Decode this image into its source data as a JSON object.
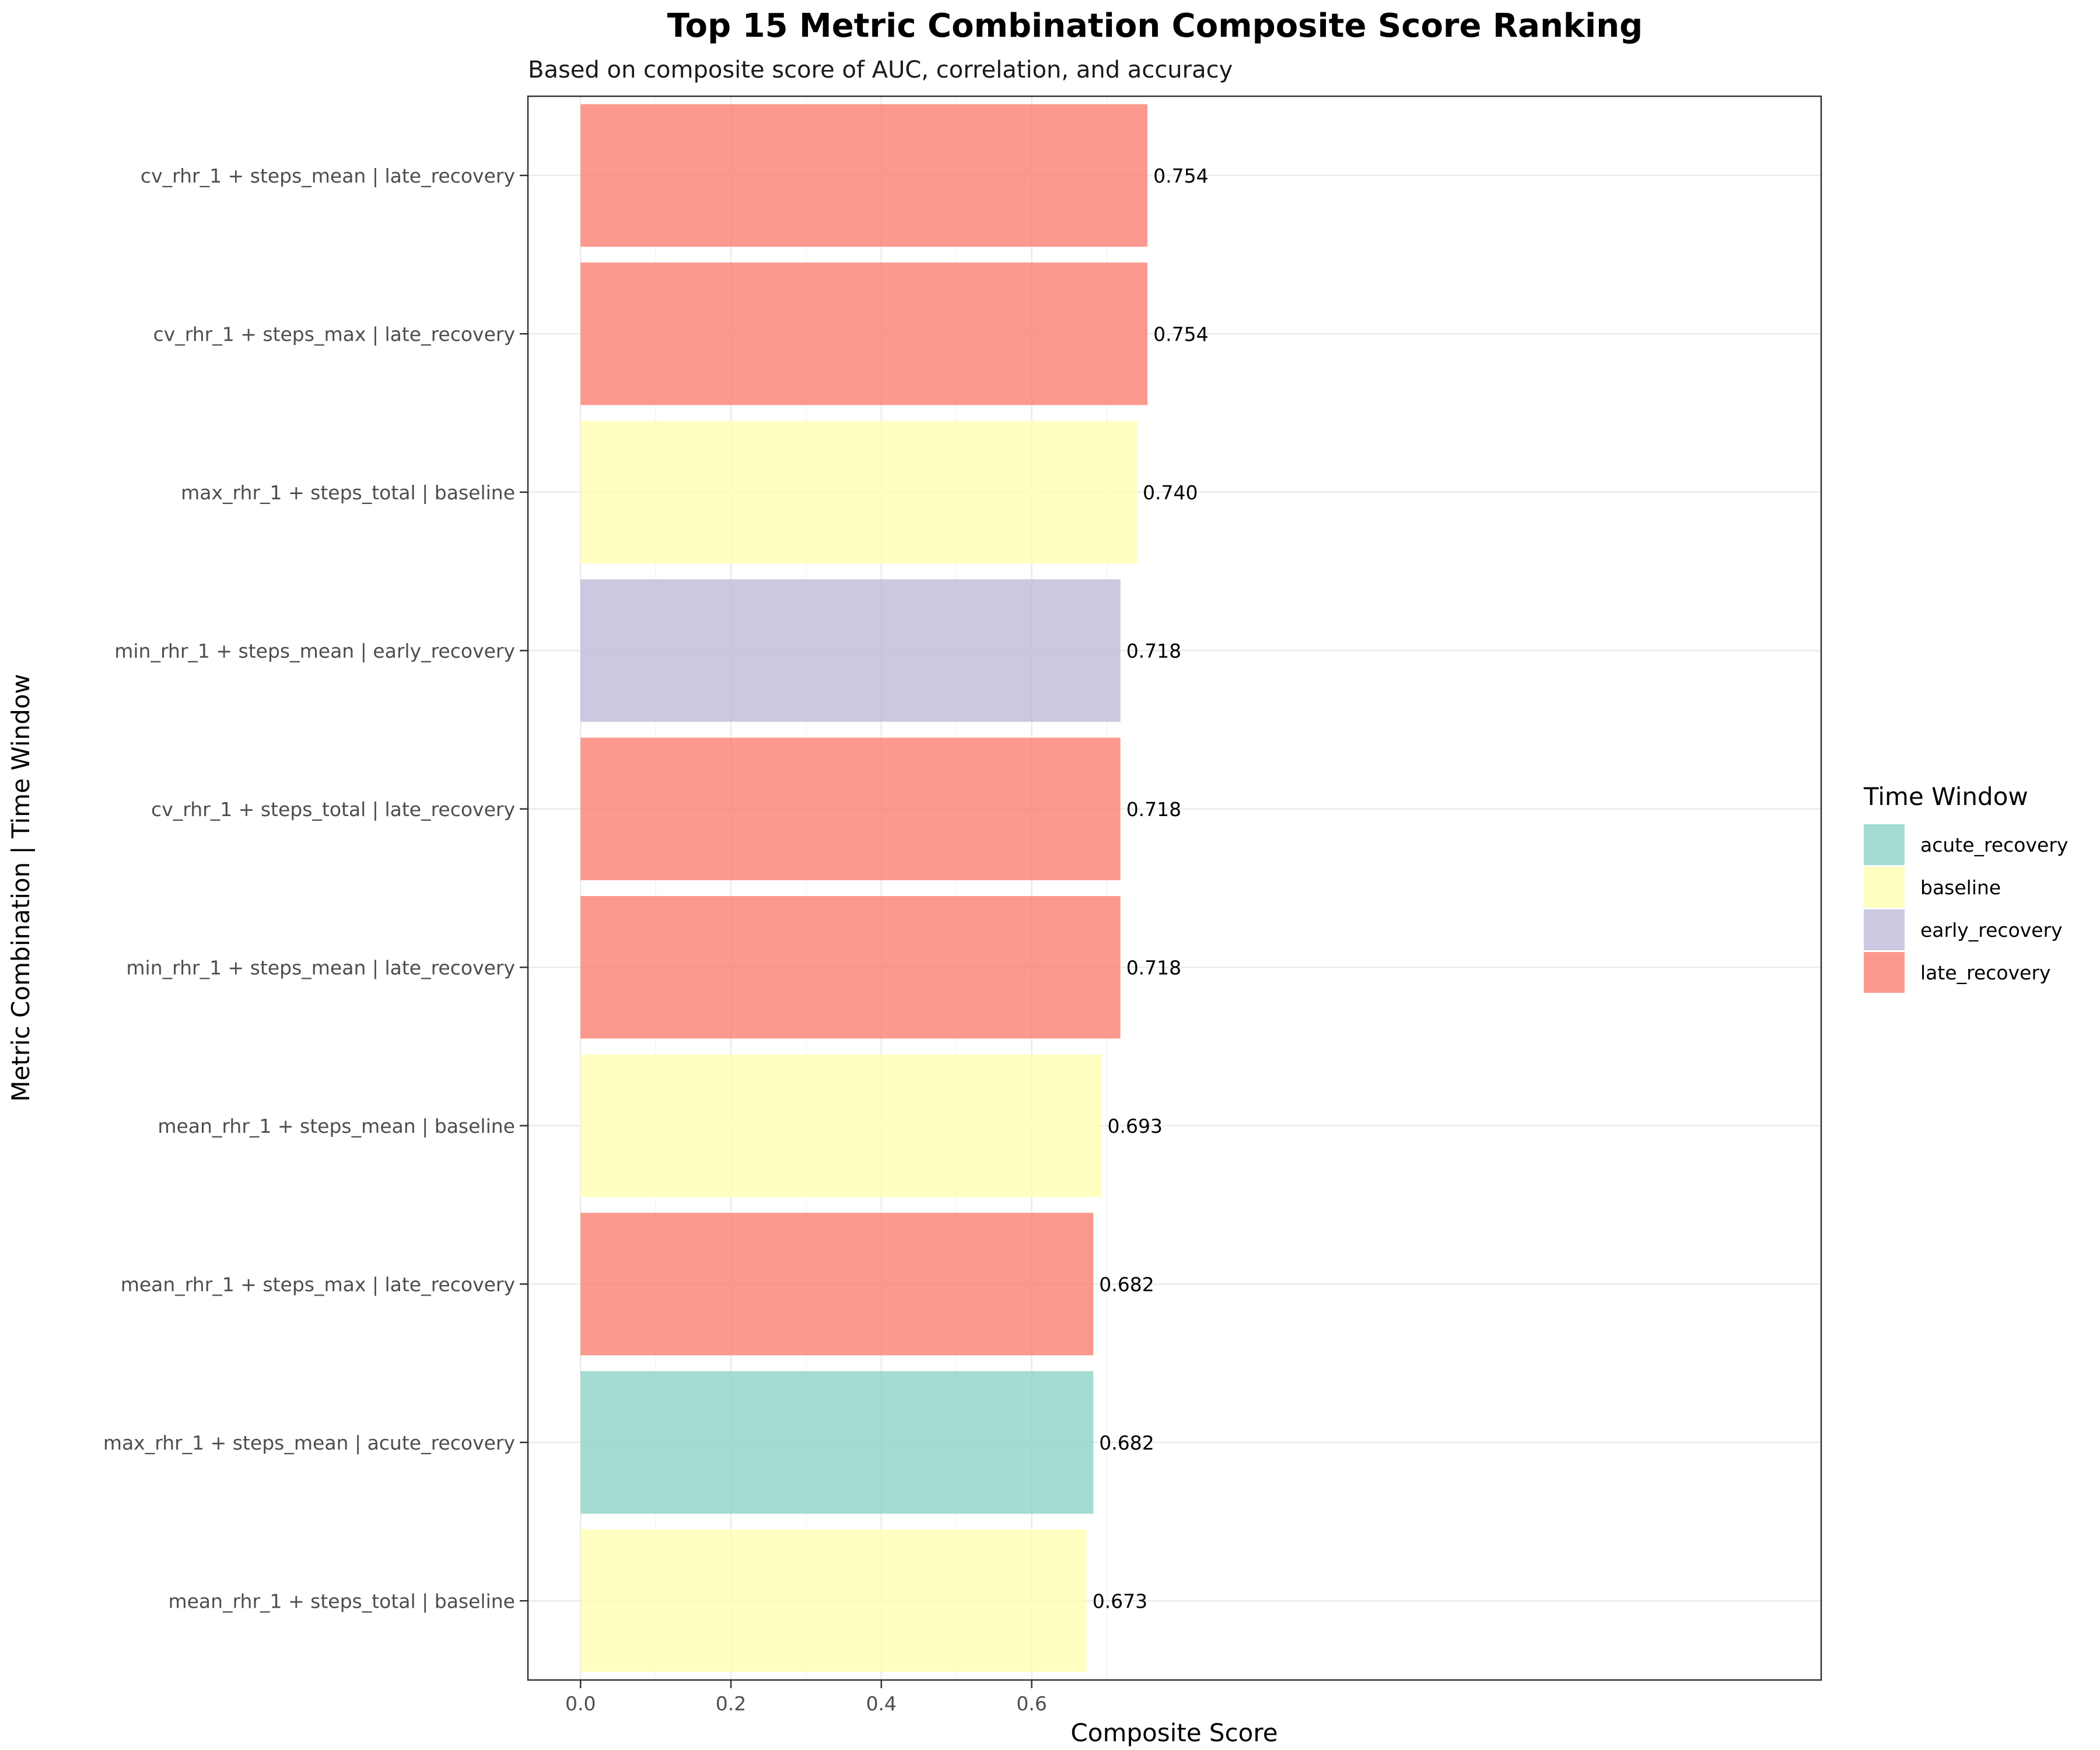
{
  "chart_data": {
    "type": "bar",
    "orientation": "horizontal",
    "title": "Top 15 Metric Combination Composite Score Ranking",
    "subtitle": "Based on composite score of AUC, correlation, and accuracy",
    "xlabel": "Composite Score",
    "ylabel": "Metric Combination | Time Window",
    "xlim": [
      -0.07,
      1.65
    ],
    "x_ticks": [
      0.0,
      0.2,
      0.4,
      0.6
    ],
    "x_tick_labels": [
      "0.0",
      "0.2",
      "0.4",
      "0.6"
    ],
    "grid": true,
    "legend": {
      "title": "Time Window",
      "placement": "right",
      "entries": [
        {
          "label": "acute_recovery",
          "color": "#8dd3c7"
        },
        {
          "label": "baseline",
          "color": "#ffffb3"
        },
        {
          "label": "early_recovery",
          "color": "#bebada"
        },
        {
          "label": "late_recovery",
          "color": "#fb8072"
        }
      ]
    },
    "bars": [
      {
        "category": "cv_rhr_1 + steps_mean | late_recovery",
        "value": 0.754,
        "label": "0.754",
        "window": "late_recovery"
      },
      {
        "category": "cv_rhr_1 + steps_max | late_recovery",
        "value": 0.754,
        "label": "0.754",
        "window": "late_recovery"
      },
      {
        "category": "max_rhr_1 + steps_total | baseline",
        "value": 0.74,
        "label": "0.740",
        "window": "baseline"
      },
      {
        "category": "min_rhr_1 + steps_mean | early_recovery",
        "value": 0.718,
        "label": "0.718",
        "window": "early_recovery"
      },
      {
        "category": "cv_rhr_1 + steps_total | late_recovery",
        "value": 0.718,
        "label": "0.718",
        "window": "late_recovery"
      },
      {
        "category": "min_rhr_1 + steps_mean | late_recovery",
        "value": 0.718,
        "label": "0.718",
        "window": "late_recovery"
      },
      {
        "category": "mean_rhr_1 + steps_mean | baseline",
        "value": 0.693,
        "label": "0.693",
        "window": "baseline"
      },
      {
        "category": "mean_rhr_1 + steps_max | late_recovery",
        "value": 0.682,
        "label": "0.682",
        "window": "late_recovery"
      },
      {
        "category": "max_rhr_1 + steps_mean | acute_recovery",
        "value": 0.682,
        "label": "0.682",
        "window": "acute_recovery"
      },
      {
        "category": "mean_rhr_1 + steps_total | baseline",
        "value": 0.673,
        "label": "0.673",
        "window": "baseline"
      }
    ]
  }
}
